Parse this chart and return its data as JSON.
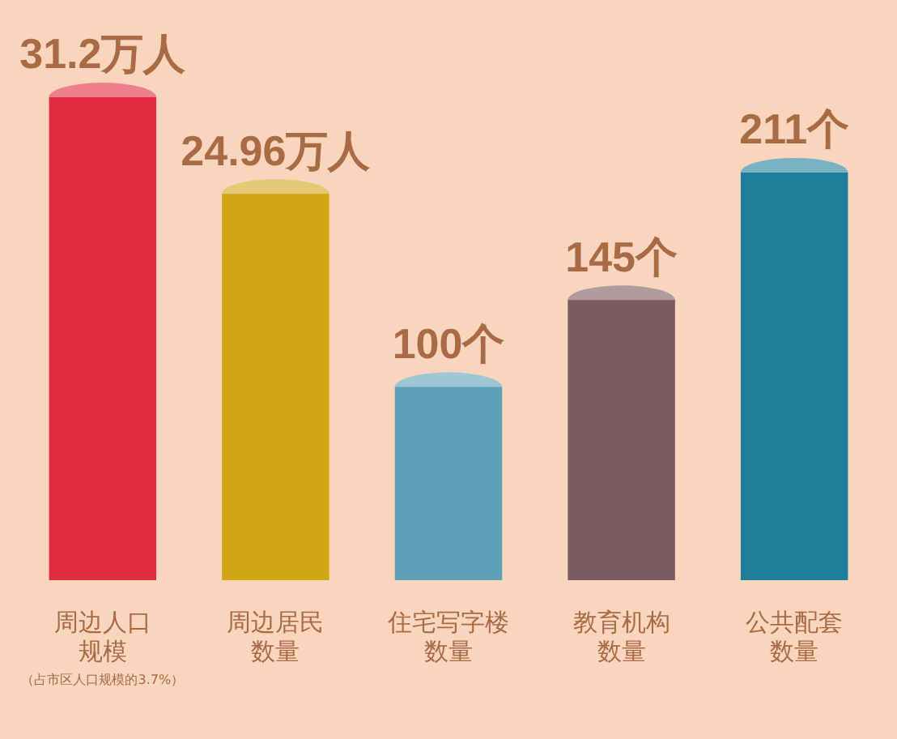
{
  "chart_data": {
    "type": "bar",
    "categories": [
      "周边人口规模",
      "周边居民数量",
      "住宅写字楼数量",
      "教育机构数量",
      "公共配套数量"
    ],
    "series": [
      {
        "axis": "y",
        "values": [
          31.2,
          24.96,
          null,
          null,
          null
        ],
        "colors": [
          "#e12b3f",
          "#d0a615",
          null,
          null,
          null
        ],
        "value_labels": [
          "31.2万人",
          "24.96万人",
          null,
          null,
          null
        ]
      },
      {
        "axis": "y2",
        "values": [
          null,
          null,
          100,
          145,
          211
        ],
        "colors": [
          null,
          null,
          "#5da0b8",
          "#7a5a5e",
          "#1f7e9a"
        ],
        "value_labels": [
          null,
          null,
          "100个",
          "145个",
          "211个"
        ]
      }
    ],
    "ylim": [
      0,
      31.2
    ],
    "y2lim": [
      0,
      250
    ],
    "tick_labels": "x",
    "annotations": [
      "（占市区人口规模的3.7%）"
    ],
    "grid": false,
    "legend": false
  }
}
